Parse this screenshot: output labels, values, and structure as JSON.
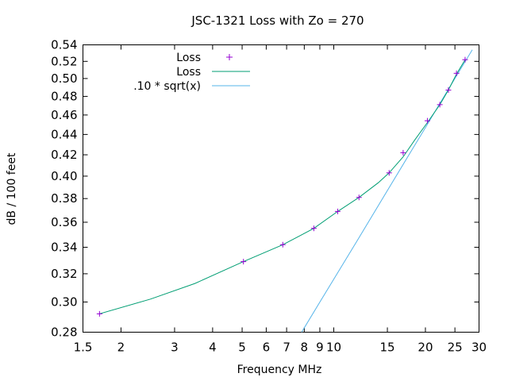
{
  "chart_data": {
    "type": "line",
    "title": "JSC-1321 Loss with Zo = 270",
    "xlabel": "Frequency MHz",
    "ylabel": "dB / 100 feet",
    "x_scale": "log",
    "y_scale": "log",
    "xlim": [
      1.5,
      30
    ],
    "ylim": [
      0.28,
      0.54
    ],
    "x_ticks": [
      1.5,
      2,
      3,
      4,
      5,
      6,
      7,
      8,
      9,
      10,
      15,
      20,
      25,
      30
    ],
    "x_tick_labels": [
      "1.5",
      "2",
      "3",
      "4",
      "5",
      "6",
      "7",
      "8",
      "9",
      "10",
      "15",
      "20",
      "25",
      "30"
    ],
    "y_ticks": [
      0.28,
      0.3,
      0.32,
      0.34,
      0.36,
      0.38,
      0.4,
      0.42,
      0.44,
      0.46,
      0.48,
      0.5,
      0.52,
      0.54
    ],
    "y_tick_labels": [
      "0.28",
      "0.30",
      "0.32",
      "0.34",
      "0.36",
      "0.38",
      "0.40",
      "0.42",
      "0.44",
      "0.46",
      "0.48",
      "0.50",
      "0.52",
      "0.54"
    ],
    "grid": false,
    "legend_position": "top-left",
    "series": [
      {
        "name": "Loss",
        "style": "points",
        "marker": "plus",
        "color": "#9400d3",
        "x": [
          1.7,
          5.05,
          6.8,
          8.6,
          10.3,
          12.1,
          15.2,
          16.9,
          20.3,
          22.3,
          23.8,
          25.3,
          27.0
        ],
        "y": [
          0.292,
          0.329,
          0.342,
          0.355,
          0.369,
          0.381,
          0.403,
          0.422,
          0.454,
          0.471,
          0.487,
          0.506,
          0.522
        ]
      },
      {
        "name": "Loss",
        "style": "line",
        "color": "#009e73",
        "x": [
          1.7,
          2.5,
          3.5,
          5.05,
          6.8,
          8.6,
          10.3,
          12.1,
          14.0,
          15.2,
          16.9,
          18.5,
          20.3,
          22.3,
          23.8,
          25.3,
          27.0
        ],
        "y": [
          0.292,
          0.302,
          0.313,
          0.329,
          0.342,
          0.355,
          0.369,
          0.381,
          0.394,
          0.403,
          0.418,
          0.435,
          0.452,
          0.471,
          0.487,
          0.505,
          0.522
        ]
      },
      {
        "name": ".10 * sqrt(x)",
        "style": "line",
        "color": "#56b4e9",
        "function": "0.10*sqrt(x)",
        "x": [
          7.84,
          9,
          10,
          12,
          15,
          18,
          20,
          22,
          25,
          28.5
        ],
        "y": [
          0.28,
          0.3,
          0.316,
          0.346,
          0.387,
          0.424,
          0.447,
          0.469,
          0.5,
          0.534
        ]
      }
    ]
  }
}
